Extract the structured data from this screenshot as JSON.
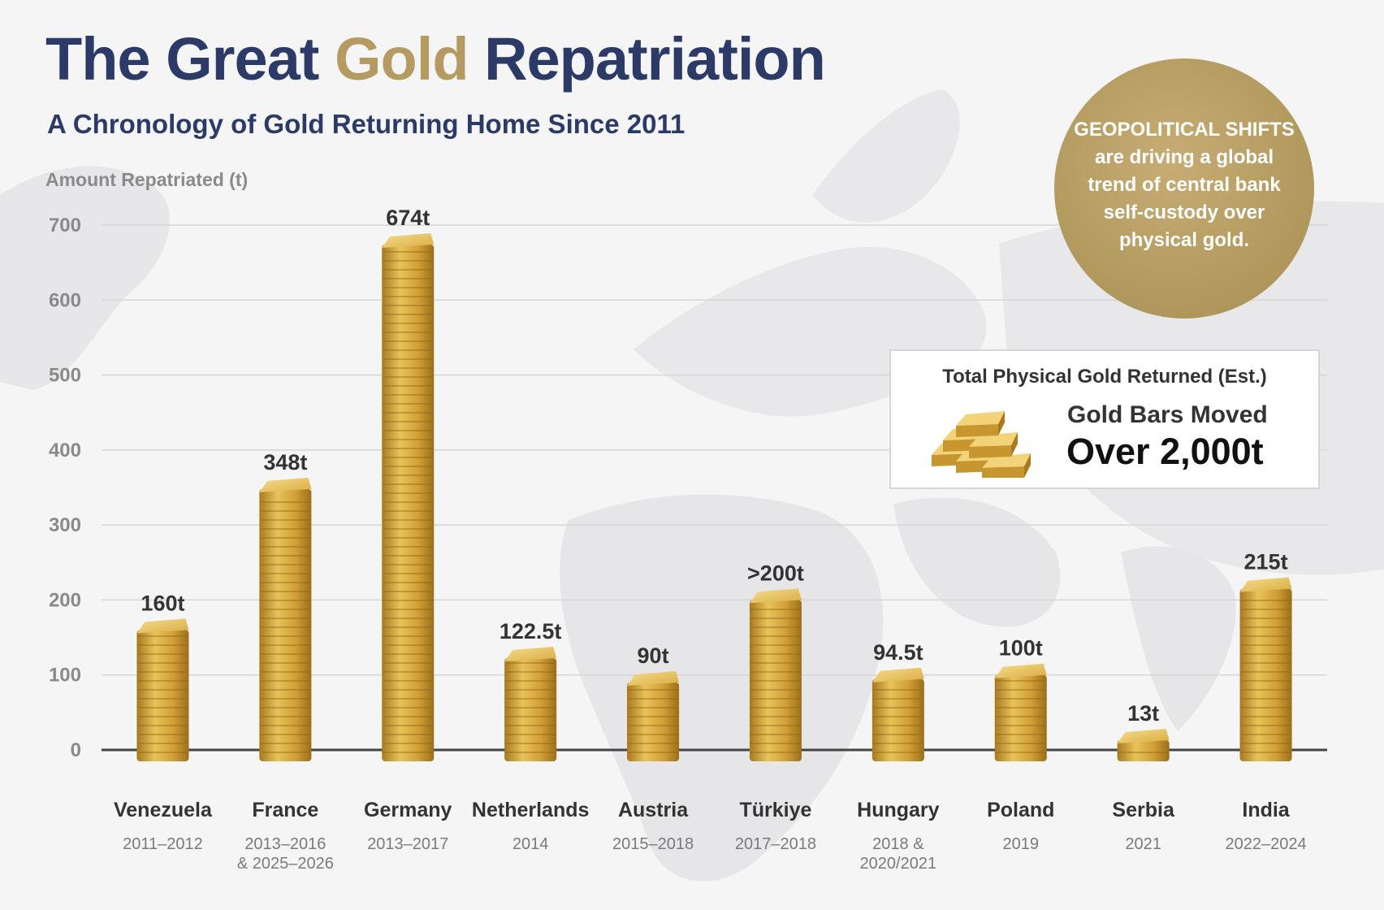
{
  "title": {
    "part1": "The Great ",
    "part2": "Gold",
    "part3": " Repatriation"
  },
  "subtitle": "A Chronology of Gold Returning Home Since 2011",
  "callout": "GEOPOLITICAL SHIFTS are driving a global trend of central bank self-custody over physical gold.",
  "total_box": {
    "title": "Total Physical Gold Returned (Est.)",
    "icon": "gold-bars-stack-icon",
    "label": "Gold Bars Moved",
    "value": "Over 2,000t"
  },
  "colors": {
    "navy": "#2b3a67",
    "gold_accent": "#b59b62",
    "bar_gold": "#d4a437",
    "axis": "#444444"
  },
  "chart_data": {
    "type": "bar",
    "title": "The Great Gold Repatriation",
    "ylabel": "Amount Repatriated (t)",
    "xlabel": "",
    "ylim": [
      0,
      700
    ],
    "yticks": [
      0,
      100,
      200,
      300,
      400,
      500,
      600,
      700
    ],
    "grid": true,
    "categories": [
      "Venezuela",
      "France",
      "Germany",
      "Netherlands",
      "Austria",
      "Türkiye",
      "Hungary",
      "Poland",
      "Serbia",
      "India"
    ],
    "periods": [
      "2011–2012",
      "2013–2016\n& 2025–2026",
      "2013–2017",
      "2014",
      "2015–2018",
      "2017–2018",
      "2018 &\n2020/2021",
      "2019",
      "2021",
      "2022–2024"
    ],
    "values": [
      160,
      348,
      674,
      122.5,
      90,
      200,
      94.5,
      100,
      13,
      215
    ],
    "data_labels": [
      "160t",
      "348t",
      "674t",
      "122.5t",
      "90t",
      ">200t",
      "94.5t",
      "100t",
      "13t",
      "215t"
    ]
  }
}
